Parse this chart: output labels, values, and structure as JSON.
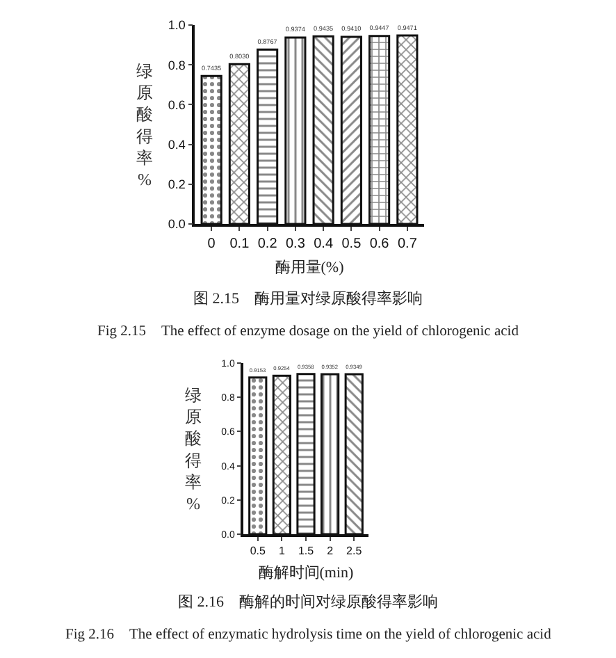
{
  "chart_data": [
    {
      "type": "bar",
      "xlabel": "酶用量(%)",
      "ylabel": "绿原酸得率%",
      "categories": [
        "0",
        "0.1",
        "0.2",
        "0.3",
        "0.4",
        "0.5",
        "0.6",
        "0.7"
      ],
      "values": [
        0.7435,
        0.803,
        0.8767,
        0.9374,
        0.9435,
        0.941,
        0.9447,
        0.9471
      ],
      "value_labels": [
        "0.7435",
        "0.8030",
        "0.8767",
        "0.9374",
        "0.9435",
        "0.9410",
        "0.9447",
        "0.9471"
      ],
      "color": "#111111",
      "ylim": [
        0,
        1.0
      ],
      "yticks": [
        {
          "value": 0,
          "label": "0.0"
        },
        {
          "value": 0.2,
          "label": "0.2"
        },
        {
          "value": 0.4,
          "label": "0.4"
        },
        {
          "value": 0.6,
          "label": "0.6"
        },
        {
          "value": 0.8,
          "label": "0.8"
        },
        {
          "value": 1.0,
          "label": "1.0"
        }
      ],
      "annotations": [
        "图 2.15　酶用量对绿原酸得率影响",
        "Fig 2.15　The effect of enzyme dosage on the yield of chlorogenic acid"
      ]
    },
    {
      "type": "bar",
      "xlabel": "酶解时间(min)",
      "ylabel": "绿原酸得率%",
      "categories": [
        "0.5",
        "1",
        "1.5",
        "2",
        "2.5"
      ],
      "values": [
        0.9153,
        0.9254,
        0.9358,
        0.9352,
        0.9349
      ],
      "value_labels": [
        "0.9153",
        "0.9254",
        "0.9358",
        "0.9352",
        "0.9349"
      ],
      "color": "#111111",
      "ylim": [
        0,
        1.0
      ],
      "yticks": [
        {
          "value": 0,
          "label": "0.0"
        },
        {
          "value": 0.2,
          "label": "0.2"
        },
        {
          "value": 0.4,
          "label": "0.4"
        },
        {
          "value": 0.6,
          "label": "0.6"
        },
        {
          "value": 0.8,
          "label": "0.8"
        },
        {
          "value": 1.0,
          "label": "1.0"
        }
      ],
      "annotations": [
        "图 2.16　酶解的时间对绿原酸得率影响",
        "Fig 2.16　The effect of enzymatic hydrolysis time on the yield of chlorogenic acid"
      ]
    }
  ]
}
